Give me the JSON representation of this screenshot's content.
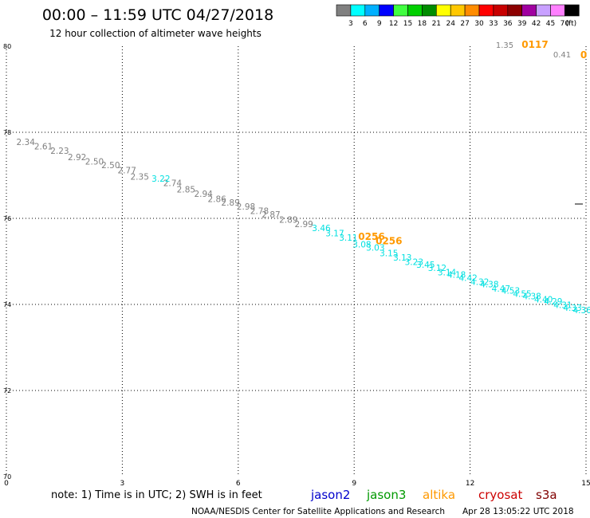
{
  "header": {
    "title": "00:00 – 11:59 UTC 04/27/2018",
    "subtitle": "12 hour collection of altimeter wave heights"
  },
  "colorbar": {
    "unit": "(ft)",
    "colors": [
      "#808080",
      "#00ffff",
      "#00b0ff",
      "#0000ff",
      "#40ff40",
      "#00d000",
      "#008c00",
      "#ffff00",
      "#ffc800",
      "#ff8c00",
      "#ff0000",
      "#c80000",
      "#8c0000",
      "#a000a0",
      "#c8a0ff",
      "#ff80ff",
      "#000000"
    ],
    "labels": [
      "3",
      "6",
      "9",
      "12",
      "15",
      "18",
      "21",
      "24",
      "27",
      "30",
      "33",
      "36",
      "39",
      "42",
      "45",
      "70"
    ]
  },
  "footer": {
    "note": "note: 1) Time is in UTC; 2) SWH is in feet",
    "satellites": [
      {
        "name": "jason2",
        "color": "#0000cc"
      },
      {
        "name": "jason3",
        "color": "#009900"
      },
      {
        "name": "altika",
        "color": "#ff9900"
      },
      {
        "name": "cryosat",
        "color": "#cc0000"
      },
      {
        "name": "s3a",
        "color": "#800000"
      }
    ],
    "credit": "NOAA/NESDIS Center for Satellite Applications and Research",
    "timestamp": "Apr 28 13:05:22 UTC 2018"
  },
  "chart_data": {
    "type": "scatter",
    "xlim": [
      0,
      15
    ],
    "ylim": [
      70,
      80
    ],
    "x_ticks": [
      0,
      3,
      6,
      9,
      12,
      15
    ],
    "y_ticks": [
      70,
      72,
      74,
      76,
      78,
      80
    ],
    "grid": true,
    "series": [
      {
        "color": "#808080",
        "points": [
          {
            "x": 0.5,
            "y": 77.7,
            "label": "2.34"
          },
          {
            "x": 0.96,
            "y": 77.6,
            "label": "2.61"
          },
          {
            "x": 1.38,
            "y": 77.5,
            "label": "2.23"
          },
          {
            "x": 1.83,
            "y": 77.35,
            "label": "2.92"
          },
          {
            "x": 2.28,
            "y": 77.25,
            "label": "2.50"
          },
          {
            "x": 2.7,
            "y": 77.17,
            "label": "2.50"
          },
          {
            "x": 3.12,
            "y": 77.05,
            "label": "2.77"
          },
          {
            "x": 3.45,
            "y": 76.9,
            "label": "2.35"
          },
          {
            "x": 4.3,
            "y": 76.75,
            "label": "2.74"
          },
          {
            "x": 4.65,
            "y": 76.6,
            "label": "2.85"
          },
          {
            "x": 5.1,
            "y": 76.5,
            "label": "2.94"
          },
          {
            "x": 5.45,
            "y": 76.38,
            "label": "2.86"
          },
          {
            "x": 5.8,
            "y": 76.3,
            "label": "2.89"
          },
          {
            "x": 6.2,
            "y": 76.2,
            "label": "2.98"
          },
          {
            "x": 6.55,
            "y": 76.1,
            "label": "2.78"
          },
          {
            "x": 6.85,
            "y": 76.02,
            "label": "2.87"
          },
          {
            "x": 7.3,
            "y": 75.9,
            "label": "2.89"
          },
          {
            "x": 7.7,
            "y": 75.8,
            "label": "2.99"
          }
        ]
      },
      {
        "color": "#00e0e0",
        "points": [
          {
            "x": 4.0,
            "y": 76.85,
            "label": "3.22"
          },
          {
            "x": 8.15,
            "y": 75.7,
            "label": "3.46"
          },
          {
            "x": 8.5,
            "y": 75.58,
            "label": "3.17"
          },
          {
            "x": 8.85,
            "y": 75.48,
            "label": "3.11"
          },
          {
            "x": 9.2,
            "y": 75.32,
            "label": "3.08"
          },
          {
            "x": 9.55,
            "y": 75.25,
            "label": "3.03"
          },
          {
            "x": 9.9,
            "y": 75.12,
            "label": "3.15"
          },
          {
            "x": 10.25,
            "y": 75.02,
            "label": "3.13"
          },
          {
            "x": 10.55,
            "y": 74.92,
            "label": "3.23"
          },
          {
            "x": 10.85,
            "y": 74.85,
            "label": "3.45"
          },
          {
            "x": 11.15,
            "y": 74.78,
            "label": "3.12"
          },
          {
            "x": 11.4,
            "y": 74.68,
            "label": "3.14"
          },
          {
            "x": 11.65,
            "y": 74.62,
            "label": "4.18"
          },
          {
            "x": 11.95,
            "y": 74.55,
            "label": "4.42"
          },
          {
            "x": 12.25,
            "y": 74.45,
            "label": "4.32"
          },
          {
            "x": 12.5,
            "y": 74.4,
            "label": "4.38"
          },
          {
            "x": 12.8,
            "y": 74.3,
            "label": "4.47"
          },
          {
            "x": 13.05,
            "y": 74.25,
            "label": "4.53"
          },
          {
            "x": 13.35,
            "y": 74.18,
            "label": "4.55"
          },
          {
            "x": 13.6,
            "y": 74.12,
            "label": "4.38"
          },
          {
            "x": 13.9,
            "y": 74.05,
            "label": "4.40"
          },
          {
            "x": 14.15,
            "y": 74.0,
            "label": "4.29"
          },
          {
            "x": 14.4,
            "y": 73.92,
            "label": "4.31"
          },
          {
            "x": 14.65,
            "y": 73.85,
            "label": "4.33"
          },
          {
            "x": 14.9,
            "y": 73.8,
            "label": "4.36"
          }
        ]
      },
      {
        "color": "#ff9900",
        "points": [
          {
            "x": 9.45,
            "y": 75.5,
            "label": "0256"
          },
          {
            "x": 9.9,
            "y": 75.4,
            "label": "0256"
          }
        ]
      }
    ],
    "corner_labels": [
      {
        "value": "1.35",
        "color": "#808080"
      },
      {
        "value": "0117",
        "color": "#ff9900"
      },
      {
        "value": "0.41",
        "color": "#808080"
      },
      {
        "value": "0",
        "color": "#ff9900"
      }
    ]
  }
}
